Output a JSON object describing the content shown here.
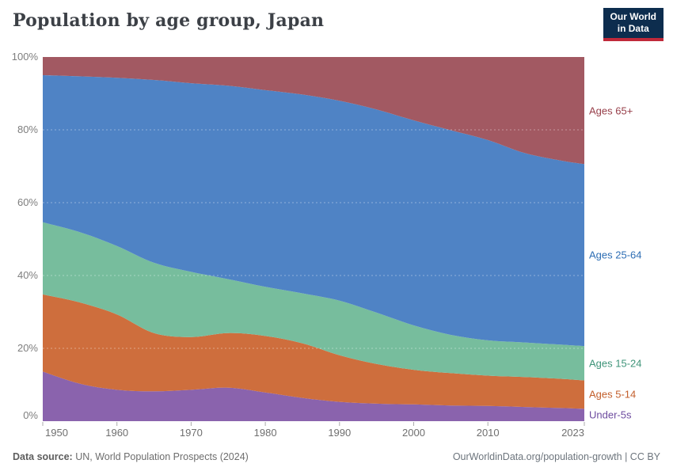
{
  "header": {
    "title": "Population by age group, Japan",
    "logo": {
      "line1": "Our World",
      "line2": "in Data",
      "bg": "#0d2d4e",
      "accent": "#c0293a"
    }
  },
  "chart_data": {
    "type": "area",
    "stacked": true,
    "title": "Population by age group, Japan",
    "x": [
      1950,
      1955,
      1960,
      1965,
      1970,
      1975,
      1980,
      1985,
      1990,
      1995,
      2000,
      2005,
      2010,
      2015,
      2020,
      2023
    ],
    "series": [
      {
        "name": "Under-5s",
        "fill": "#8a63ad",
        "label_color": "#6d4b9f",
        "values": [
          13.6,
          10.3,
          8.6,
          8.2,
          8.6,
          9.2,
          7.9,
          6.4,
          5.3,
          4.8,
          4.6,
          4.3,
          4.2,
          3.9,
          3.6,
          3.4
        ]
      },
      {
        "name": "Ages 5-14",
        "fill": "#ce6e3d",
        "label_color": "#c35f2c",
        "values": [
          21.2,
          22.3,
          20.7,
          16.0,
          14.5,
          15.0,
          15.5,
          15.0,
          12.8,
          10.9,
          9.5,
          8.9,
          8.3,
          8.2,
          8.0,
          7.8
        ]
      },
      {
        "name": "Ages 15-24",
        "fill": "#77bd9d",
        "label_color": "#3f9479",
        "values": [
          19.8,
          19.3,
          18.8,
          19.3,
          17.9,
          14.8,
          13.5,
          13.7,
          15.0,
          14.1,
          12.2,
          10.5,
          9.7,
          9.5,
          9.4,
          9.4
        ]
      },
      {
        "name": "Ages 25-64",
        "fill": "#4f83c5",
        "label_color": "#2e6eb4",
        "values": [
          40.4,
          42.8,
          46.2,
          50.2,
          51.8,
          53.1,
          54.0,
          54.6,
          54.9,
          55.8,
          56.3,
          56.2,
          55.0,
          52.0,
          50.5,
          50.0
        ]
      },
      {
        "name": "Ages 65+",
        "fill": "#a25962",
        "label_color": "#973f4a",
        "values": [
          5.0,
          5.3,
          5.7,
          6.3,
          7.2,
          7.9,
          9.1,
          10.3,
          12.0,
          14.4,
          17.4,
          20.1,
          22.8,
          26.4,
          28.5,
          29.4
        ]
      }
    ],
    "ylim": [
      0,
      100
    ],
    "yticks": [
      {
        "value": 0,
        "label": "0%"
      },
      {
        "value": 20,
        "label": "20%"
      },
      {
        "value": 40,
        "label": "40%"
      },
      {
        "value": 60,
        "label": "60%"
      },
      {
        "value": 80,
        "label": "80%"
      },
      {
        "value": 100,
        "label": "100%"
      }
    ],
    "xticks": [
      {
        "value": 1950,
        "label": "1950"
      },
      {
        "value": 1960,
        "label": "1960"
      },
      {
        "value": 1970,
        "label": "1970"
      },
      {
        "value": 1980,
        "label": "1980"
      },
      {
        "value": 1990,
        "label": "1990"
      },
      {
        "value": 2000,
        "label": "2000"
      },
      {
        "value": 2010,
        "label": "2010"
      },
      {
        "value": 2023,
        "label": "2023"
      }
    ],
    "grid": "dashed, horizontal, drawn over areas",
    "legend_position": "right"
  },
  "footer": {
    "source_label": "Data source:",
    "source_value": " UN, World Population Prospects (2024)",
    "link": "OurWorldinData.org/population-growth | CC BY"
  }
}
